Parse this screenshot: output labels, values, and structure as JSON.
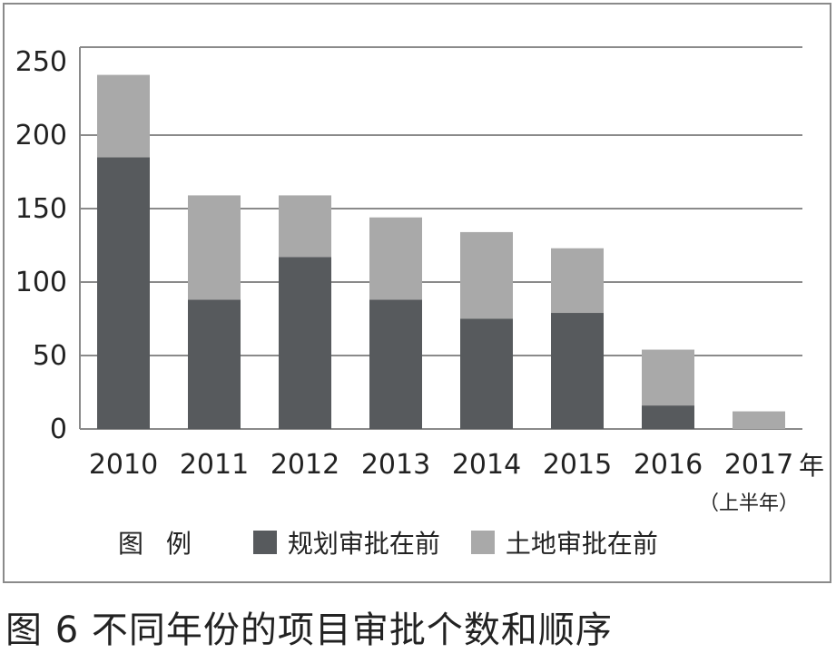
{
  "chart_data": {
    "type": "bar",
    "stacked": true,
    "title": "",
    "xlabel": "",
    "ylabel": "",
    "x_unit_label": "年",
    "categories": [
      "2010",
      "2011",
      "2012",
      "2013",
      "2014",
      "2015",
      "2016",
      "2017"
    ],
    "category_notes": [
      "",
      "",
      "",
      "",
      "",
      "",
      "",
      "（上半年）"
    ],
    "yticks": [
      "0",
      "50",
      "100",
      "150",
      "200",
      "250"
    ],
    "ylim": [
      0,
      250
    ],
    "grid": true,
    "legend_position": "bottom",
    "series": [
      {
        "name": "规划审批在前",
        "color": "#575a5d",
        "values": [
          185,
          88,
          117,
          88,
          75,
          79,
          16,
          0
        ]
      },
      {
        "name": "土地审批在前",
        "color": "#a9a9a9",
        "values": [
          56,
          71,
          42,
          56,
          59,
          44,
          38,
          12
        ]
      }
    ]
  },
  "legend": {
    "title": "图 例"
  },
  "caption": "图 6 不同年份的项目审批个数和顺序"
}
